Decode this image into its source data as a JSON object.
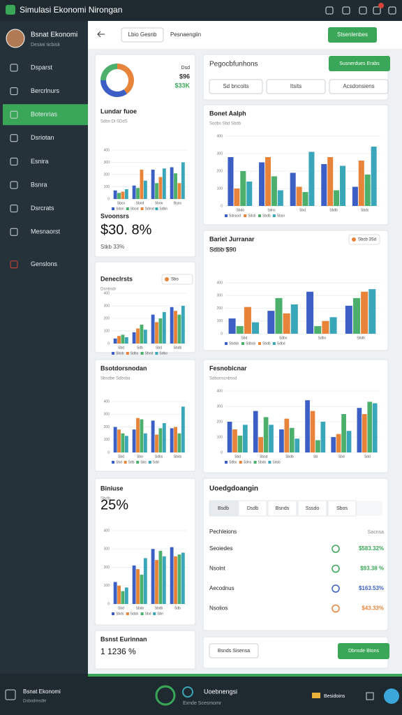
{
  "app": {
    "title": "Simulasi Ekonomi Nirongan"
  },
  "sidebar": {
    "user_name": "Bsnat Ekonomi",
    "user_sub": "Desiwi ticbisk",
    "active": 2,
    "nav": [
      "Dsparst",
      "Bercrlnurs",
      "Botenrias",
      "Dsriotan",
      "Esnira",
      "Bsnra",
      "Dsrcrats",
      "Mesnaorst",
      "Genslons"
    ]
  },
  "header": {
    "tab1": "Lbio Gesnb",
    "tab2": "Pesnaengiin",
    "button": "Stsenlenbes"
  },
  "panel": {
    "title": "Pegocbfunhons",
    "button": "Susnerdues Erabs",
    "filter1": "Sd bncoits",
    "filter2": "Itsits",
    "filter3": "Acsdonsiens"
  },
  "summary": {
    "title": "Bsnst Eurinnan",
    "value": "1 1236 %"
  },
  "actions": {
    "secondary": "Bsnds Sisensa",
    "primary": "Dbnsde Btons"
  },
  "detail": {
    "title": "Uoedgdoangin",
    "tabs": [
      "Bsdb",
      "Dsdb",
      "Bsnds",
      "Sssdo",
      "Sbos"
    ],
    "col1": "Pechleions",
    "col2": "Sacnsa",
    "rows": [
      {
        "name": "Seoiedes",
        "value": "$583.32%",
        "color": "#3aa657"
      },
      {
        "name": "Nsolnt",
        "value": "$93.38 %",
        "color": "#3aa657"
      },
      {
        "name": "Aecodnus",
        "value": "$163.53%",
        "color": "#3b5fc4"
      },
      {
        "name": "Nsolios",
        "value": "$43.33%",
        "color": "#e8843a"
      }
    ]
  },
  "footer": {
    "left_title": "Bsnat Ekonomi",
    "left_sub": "Dsbodmsdin",
    "center_title": "Uoebnengsi",
    "center_sub": "Exnde Scesmomr",
    "right": "Besidoins"
  },
  "chart_data": [
    {
      "type": "pie",
      "values": [
        40,
        35,
        25
      ],
      "colors": [
        "#e8843a",
        "#3b5fc4",
        "#4cb06c"
      ],
      "notes": [
        "Dsd",
        "$96",
        "$33K"
      ]
    },
    {
      "type": "bar",
      "title": "Lundar fuoe",
      "subtitle": "Sdbn Dl SDdS",
      "kpi_title": "Svoonsrs",
      "kpi": "$30. 8%",
      "kpi_sub": "Stkb 33%",
      "categories": [
        "Sbco",
        "Sbnd",
        "Sbrw",
        "Bsns"
      ],
      "ylim": [
        0,
        400
      ],
      "yticks": [
        0,
        100,
        200,
        300,
        400
      ],
      "series": [
        {
          "name": "Sdon",
          "color": "#3b5fc4",
          "values": [
            70,
            110,
            240,
            260
          ]
        },
        {
          "name": "Sbod",
          "color": "#4cb06c",
          "values": [
            50,
            90,
            130,
            210
          ]
        },
        {
          "name": "Sdmd",
          "color": "#e8843a",
          "values": [
            60,
            240,
            180,
            130
          ]
        },
        {
          "name": "Sdbn",
          "color": "#3aa6b9",
          "values": [
            80,
            150,
            250,
            300
          ]
        }
      ]
    },
    {
      "type": "bar",
      "title": "Bonet Aalph",
      "subtitle": "Sodbs Sbd Sbdb",
      "categories": [
        "Sbdo",
        "Sdns",
        "Sbd",
        "Sbdb",
        "Sbds"
      ],
      "ylim": [
        0,
        400
      ],
      "yticks": [
        0,
        100,
        200,
        300,
        400
      ],
      "series": [
        {
          "name": "Sdnsod",
          "color": "#3b5fc4",
          "values": [
            280,
            250,
            190,
            240,
            110
          ]
        },
        {
          "name": "Sdsb",
          "color": "#e8843a",
          "values": [
            100,
            280,
            110,
            280,
            260
          ]
        },
        {
          "name": "Sbdb",
          "color": "#4cb06c",
          "values": [
            200,
            170,
            80,
            90,
            180
          ]
        },
        {
          "name": "Sbsn",
          "color": "#3aa6b9",
          "values": [
            140,
            90,
            310,
            230,
            340
          ]
        }
      ]
    },
    {
      "type": "bar",
      "title": "Bariet Jurranar",
      "subtitle": "Sdb Sbd Ssbo",
      "kpi": "Sdbb $90",
      "badge": "Sbcb 3Sd",
      "categories": [
        "Sbd",
        "Sdbs",
        "Sdbs",
        "Sbdb"
      ],
      "ylim": [
        0,
        400
      ],
      "yticks": [
        0,
        100,
        200,
        300,
        400
      ],
      "series": [
        {
          "name": "Sbdsb",
          "color": "#3b5fc4",
          "values": [
            120,
            180,
            330,
            220
          ]
        },
        {
          "name": "Sdbsb",
          "color": "#4cb06c",
          "values": [
            60,
            280,
            60,
            280
          ]
        },
        {
          "name": "Sbdb",
          "color": "#e8843a",
          "values": [
            210,
            160,
            100,
            330
          ]
        },
        {
          "name": "Sdbd",
          "color": "#3aa6b9",
          "values": [
            90,
            230,
            130,
            350
          ]
        }
      ]
    },
    {
      "type": "bar",
      "title": "Deneclrsts",
      "subtitle": "Dsnbsdr",
      "badge": "Sbo",
      "categories": [
        "Sbd",
        "Sdb",
        "Sbd",
        "Sbdb"
      ],
      "ylim": [
        0,
        400
      ],
      "yticks": [
        0,
        100,
        200,
        300,
        400
      ],
      "series": [
        {
          "name": "Sbsb",
          "color": "#3b5fc4",
          "values": [
            40,
            90,
            230,
            290
          ]
        },
        {
          "name": "Sdbs",
          "color": "#e8843a",
          "values": [
            60,
            120,
            170,
            260
          ]
        },
        {
          "name": "Sbnd",
          "color": "#4cb06c",
          "values": [
            70,
            150,
            200,
            230
          ]
        },
        {
          "name": "Sdbo",
          "color": "#3aa6b9",
          "values": [
            50,
            110,
            250,
            300
          ]
        }
      ]
    },
    {
      "type": "bar",
      "title": "Bsotdorsnodan",
      "subtitle": "Sbsdbe Sdbsba",
      "categories": [
        "Sbd",
        "Sbo",
        "Sdbs",
        "Sbds"
      ],
      "ylim": [
        0,
        400
      ],
      "yticks": [
        0,
        100,
        200,
        300,
        400
      ],
      "series": [
        {
          "name": "Sbd",
          "color": "#3b5fc4",
          "values": [
            200,
            180,
            250,
            190
          ]
        },
        {
          "name": "Sdb",
          "color": "#e8843a",
          "values": [
            180,
            270,
            140,
            200
          ]
        },
        {
          "name": "Sbs",
          "color": "#4cb06c",
          "values": [
            150,
            260,
            190,
            150
          ]
        },
        {
          "name": "Sdd",
          "color": "#3aa6b9",
          "values": [
            130,
            150,
            230,
            360
          ]
        }
      ]
    },
    {
      "type": "bar",
      "title": "Fesnobicnar",
      "subtitle": "Sdbonscnbssd",
      "categories": [
        "Sbd",
        "Sbsd",
        "Sbdb",
        "Sb",
        "Sbd",
        "Sdd"
      ],
      "ylim": [
        0,
        400
      ],
      "yticks": [
        0,
        100,
        200,
        300,
        400
      ],
      "series": [
        {
          "name": "Sdbs",
          "color": "#3b5fc4",
          "values": [
            200,
            270,
            150,
            340,
            100,
            290
          ]
        },
        {
          "name": "Sdns",
          "color": "#e8843a",
          "values": [
            150,
            100,
            220,
            270,
            120,
            250
          ]
        },
        {
          "name": "Sbdo",
          "color": "#4cb06c",
          "values": [
            110,
            230,
            160,
            80,
            250,
            330
          ]
        },
        {
          "name": "Sdsb",
          "color": "#3aa6b9",
          "values": [
            180,
            180,
            90,
            200,
            140,
            320
          ]
        }
      ]
    },
    {
      "type": "bar",
      "title": "Biniuse",
      "kpi": "25%",
      "subtitle": "Sbdb",
      "categories": [
        "Sbd",
        "Sbdo",
        "Sbdb",
        "Sdb"
      ],
      "ylim": [
        0,
        400
      ],
      "yticks": [
        0,
        100,
        200,
        300,
        400
      ],
      "series": [
        {
          "name": "Sbds",
          "color": "#3b5fc4",
          "values": [
            120,
            210,
            300,
            310
          ]
        },
        {
          "name": "Sdsb",
          "color": "#e8843a",
          "values": [
            100,
            190,
            240,
            260
          ]
        },
        {
          "name": "Sbd",
          "color": "#4cb06c",
          "values": [
            70,
            160,
            290,
            270
          ]
        },
        {
          "name": "Sbn",
          "color": "#3aa6b9",
          "values": [
            90,
            250,
            260,
            280
          ]
        }
      ]
    }
  ]
}
